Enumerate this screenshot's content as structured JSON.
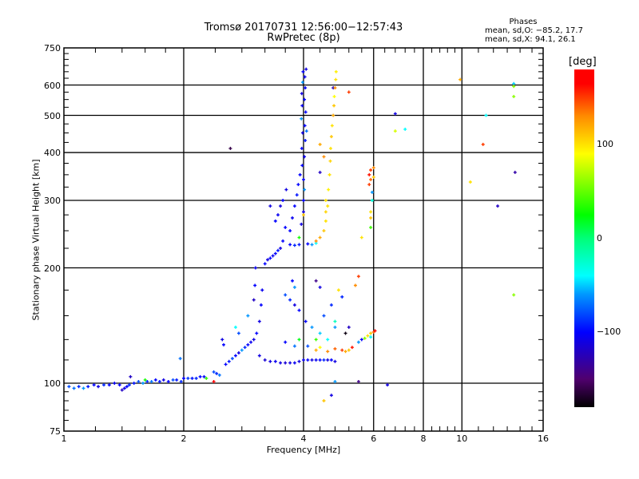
{
  "chart_data": {
    "type": "scatter",
    "title": "Tromsø 20170731 12:56:00−12:57:43",
    "subtitle": "RwPretec (8p)",
    "xlabel": "Frequency [MHz]",
    "ylabel": "Stationary phase Virtual Height [km]",
    "xscale": "log",
    "yscale": "log",
    "xlim": [
      1,
      16
    ],
    "ylim": [
      75,
      750
    ],
    "xticks": [
      1,
      2,
      4,
      6,
      8,
      10,
      16
    ],
    "xtick_labels": [
      "1",
      "2",
      "4",
      "6",
      "8",
      "10",
      "16"
    ],
    "yticks": [
      75,
      100,
      200,
      300,
      400,
      500,
      600,
      750
    ],
    "ytick_labels": [
      "75",
      "100",
      "200",
      "300",
      "400",
      "500",
      "600",
      "750"
    ],
    "grid": true,
    "stats": {
      "heading": "Phases",
      "o_line": "mean, sd,O: −85.2, 17.7",
      "x_line": "mean, sd,X:  94.1, 26.1"
    },
    "colorbar": {
      "label": "[deg]",
      "range": [
        -180,
        180
      ],
      "ticks": [
        100,
        0,
        -100
      ],
      "tick_labels": [
        "100",
        "0",
        "−100"
      ]
    },
    "point_format": [
      "frequency_MHz",
      "height_km",
      "phase_deg"
    ],
    "points": [
      [
        1.03,
        98,
        -80
      ],
      [
        1.06,
        97,
        -70
      ],
      [
        1.09,
        98,
        -90
      ],
      [
        1.12,
        97,
        -60
      ],
      [
        1.15,
        98,
        -95
      ],
      [
        1.19,
        99,
        -100
      ],
      [
        1.22,
        98,
        -110
      ],
      [
        1.26,
        99,
        -90
      ],
      [
        1.3,
        99,
        -100
      ],
      [
        1.34,
        100,
        -105
      ],
      [
        1.38,
        99,
        -100
      ],
      [
        1.4,
        96,
        -120
      ],
      [
        1.42,
        97,
        -110
      ],
      [
        1.44,
        98,
        -100
      ],
      [
        1.46,
        99,
        -90
      ],
      [
        1.47,
        104,
        -120
      ],
      [
        1.5,
        100,
        -95
      ],
      [
        1.54,
        101,
        -80
      ],
      [
        1.58,
        100,
        -60
      ],
      [
        1.6,
        102,
        30
      ],
      [
        1.62,
        101,
        -90
      ],
      [
        1.66,
        101,
        -70
      ],
      [
        1.7,
        102,
        -100
      ],
      [
        1.74,
        101,
        -95
      ],
      [
        1.78,
        102,
        -110
      ],
      [
        1.83,
        101,
        -100
      ],
      [
        1.88,
        102,
        -80
      ],
      [
        1.92,
        102,
        -95
      ],
      [
        1.96,
        116,
        -70
      ],
      [
        1.97,
        101,
        -90
      ],
      [
        2.0,
        103,
        -100
      ],
      [
        2.05,
        103,
        -85
      ],
      [
        2.1,
        103,
        -95
      ],
      [
        2.15,
        103,
        -90
      ],
      [
        2.2,
        104,
        -100
      ],
      [
        2.25,
        104,
        -100
      ],
      [
        2.28,
        103,
        40
      ],
      [
        2.38,
        101,
        170
      ],
      [
        2.38,
        107,
        -80
      ],
      [
        2.42,
        106,
        -90
      ],
      [
        2.46,
        105,
        -70
      ],
      [
        2.5,
        130,
        -110
      ],
      [
        2.52,
        126,
        -100
      ],
      [
        2.55,
        112,
        -100
      ],
      [
        2.6,
        114,
        -95
      ],
      [
        2.62,
        410,
        -160
      ],
      [
        2.65,
        116,
        -80
      ],
      [
        2.7,
        118,
        -100
      ],
      [
        2.7,
        140,
        -40
      ],
      [
        2.75,
        120,
        -110
      ],
      [
        2.75,
        135,
        -80
      ],
      [
        2.8,
        122,
        -60
      ],
      [
        2.85,
        124,
        -90
      ],
      [
        2.9,
        126,
        -100
      ],
      [
        2.9,
        150,
        -60
      ],
      [
        2.95,
        128,
        -105
      ],
      [
        3.0,
        130,
        -110
      ],
      [
        3.0,
        165,
        -120
      ],
      [
        3.02,
        180,
        -100
      ],
      [
        3.03,
        200,
        -105
      ],
      [
        3.05,
        135,
        -100
      ],
      [
        3.1,
        145,
        -110
      ],
      [
        3.13,
        160,
        -100
      ],
      [
        3.15,
        175,
        -105
      ],
      [
        3.2,
        205,
        -100
      ],
      [
        3.25,
        210,
        -110
      ],
      [
        3.3,
        212,
        -100
      ],
      [
        3.35,
        215,
        -105
      ],
      [
        3.4,
        218,
        -100
      ],
      [
        3.45,
        222,
        -95
      ],
      [
        3.5,
        225,
        -110
      ],
      [
        3.55,
        235,
        -100
      ],
      [
        3.3,
        290,
        -110
      ],
      [
        3.4,
        265,
        -100
      ],
      [
        3.45,
        275,
        -105
      ],
      [
        3.5,
        290,
        -110
      ],
      [
        3.55,
        300,
        -100
      ],
      [
        3.6,
        255,
        -100
      ],
      [
        3.62,
        320,
        -110
      ],
      [
        3.7,
        250,
        -100
      ],
      [
        3.75,
        270,
        -105
      ],
      [
        3.8,
        290,
        -100
      ],
      [
        3.85,
        310,
        -95
      ],
      [
        3.88,
        330,
        -100
      ],
      [
        3.9,
        240,
        30
      ],
      [
        3.92,
        350,
        -100
      ],
      [
        3.95,
        260,
        -110
      ],
      [
        3.97,
        370,
        -100
      ],
      [
        4.02,
        390,
        -105
      ],
      [
        3.96,
        410,
        -100
      ],
      [
        4.04,
        430,
        -95
      ],
      [
        3.98,
        450,
        -110
      ],
      [
        4.03,
        470,
        -100
      ],
      [
        3.95,
        490,
        -60
      ],
      [
        4.05,
        510,
        -100
      ],
      [
        3.97,
        530,
        -105
      ],
      [
        4.02,
        550,
        -100
      ],
      [
        3.96,
        570,
        -110
      ],
      [
        4.04,
        590,
        -100
      ],
      [
        3.98,
        610,
        -60
      ],
      [
        4.03,
        630,
        -105
      ],
      [
        3.99,
        650,
        -100
      ],
      [
        4.06,
        660,
        -110
      ],
      [
        4.0,
        280,
        -110
      ],
      [
        4.0,
        300,
        -100
      ],
      [
        4.02,
        320,
        -60
      ],
      [
        4.0,
        340,
        -100
      ],
      [
        4.07,
        455,
        -70
      ],
      [
        3.7,
        230,
        -100
      ],
      [
        3.8,
        229,
        -90
      ],
      [
        3.9,
        230,
        -95
      ],
      [
        4.1,
        231,
        -100
      ],
      [
        4.2,
        230,
        -60
      ],
      [
        4.3,
        232,
        -40
      ],
      [
        4.3,
        235,
        130
      ],
      [
        4.4,
        240,
        120
      ],
      [
        4.5,
        250,
        110
      ],
      [
        4.55,
        265,
        100
      ],
      [
        4.6,
        290,
        100
      ],
      [
        4.62,
        320,
        95
      ],
      [
        4.65,
        350,
        100
      ],
      [
        4.67,
        380,
        105
      ],
      [
        4.68,
        410,
        100
      ],
      [
        4.7,
        440,
        110
      ],
      [
        4.72,
        470,
        100
      ],
      [
        4.75,
        500,
        120
      ],
      [
        4.77,
        530,
        110
      ],
      [
        4.75,
        590,
        -120
      ],
      [
        4.78,
        560,
        90
      ],
      [
        4.8,
        590,
        130
      ],
      [
        4.82,
        620,
        100
      ],
      [
        4.83,
        650,
        95
      ],
      [
        5.2,
        575,
        150
      ],
      [
        4.55,
        280,
        105
      ],
      [
        4.55,
        300,
        100
      ],
      [
        4.5,
        390,
        130
      ],
      [
        4.4,
        420,
        120
      ],
      [
        4.4,
        355,
        -120
      ],
      [
        4.0,
        275,
        110
      ],
      [
        3.1,
        118,
        -110
      ],
      [
        3.2,
        115,
        -115
      ],
      [
        3.3,
        114,
        -110
      ],
      [
        3.4,
        114,
        -105
      ],
      [
        3.5,
        113,
        -110
      ],
      [
        3.6,
        113,
        -115
      ],
      [
        3.7,
        113,
        -110
      ],
      [
        3.8,
        113,
        -105
      ],
      [
        3.9,
        114,
        -110
      ],
      [
        4.0,
        115,
        -105
      ],
      [
        4.1,
        115,
        -100
      ],
      [
        4.2,
        115,
        -110
      ],
      [
        4.3,
        115,
        -105
      ],
      [
        4.4,
        115,
        -100
      ],
      [
        4.5,
        115,
        -90
      ],
      [
        4.6,
        115,
        -110
      ],
      [
        4.7,
        115,
        -100
      ],
      [
        4.8,
        114,
        -110
      ],
      [
        4.3,
        122,
        120
      ],
      [
        4.4,
        124,
        90
      ],
      [
        4.6,
        121,
        130
      ],
      [
        4.8,
        123,
        140
      ],
      [
        5.0,
        122,
        150
      ],
      [
        5.1,
        121,
        120
      ],
      [
        5.2,
        122,
        110
      ],
      [
        5.3,
        124,
        160
      ],
      [
        5.5,
        128,
        -60
      ],
      [
        5.6,
        130,
        -100
      ],
      [
        5.7,
        131,
        60
      ],
      [
        5.8,
        133,
        100
      ],
      [
        5.9,
        135,
        110
      ],
      [
        6.0,
        136,
        140
      ],
      [
        6.05,
        137,
        170
      ],
      [
        5.9,
        132,
        -40
      ],
      [
        3.9,
        155,
        -100
      ],
      [
        3.8,
        160,
        -110
      ],
      [
        3.7,
        165,
        -90
      ],
      [
        3.6,
        170,
        -80
      ],
      [
        4.05,
        145,
        -100
      ],
      [
        4.2,
        140,
        -60
      ],
      [
        4.4,
        135,
        -50
      ],
      [
        4.6,
        130,
        -40
      ],
      [
        4.8,
        140,
        -60
      ],
      [
        4.5,
        150,
        -80
      ],
      [
        4.7,
        160,
        -90
      ],
      [
        5.0,
        168,
        -90
      ],
      [
        3.75,
        185,
        -100
      ],
      [
        3.8,
        178,
        -60
      ],
      [
        4.9,
        175,
        100
      ],
      [
        5.5,
        190,
        150
      ],
      [
        5.4,
        180,
        130
      ],
      [
        4.3,
        185,
        -140
      ],
      [
        4.4,
        178,
        -110
      ],
      [
        3.9,
        130,
        20
      ],
      [
        4.3,
        130,
        40
      ],
      [
        4.8,
        145,
        -20
      ],
      [
        5.2,
        140,
        -120
      ],
      [
        4.1,
        125,
        -80
      ],
      [
        3.8,
        125,
        -70
      ],
      [
        3.6,
        128,
        -100
      ],
      [
        5.1,
        135,
        -175
      ],
      [
        4.5,
        90,
        110
      ],
      [
        4.7,
        93,
        -110
      ],
      [
        4.8,
        101,
        -60
      ],
      [
        5.5,
        101,
        -140
      ],
      [
        6.5,
        99,
        -110
      ],
      [
        6.8,
        505,
        -110
      ],
      [
        6.8,
        455,
        80
      ],
      [
        7.2,
        460,
        -40
      ],
      [
        9.9,
        620,
        120
      ],
      [
        10.5,
        335,
        100
      ],
      [
        11.3,
        420,
        150
      ],
      [
        11.5,
        500,
        -40
      ],
      [
        12.3,
        290,
        -120
      ],
      [
        13.5,
        605,
        -50
      ],
      [
        13.5,
        595,
        60
      ],
      [
        13.5,
        560,
        60
      ],
      [
        13.6,
        355,
        -130
      ],
      [
        13.5,
        170,
        60
      ],
      [
        5.85,
        330,
        150
      ],
      [
        5.9,
        340,
        140
      ],
      [
        5.85,
        350,
        160
      ],
      [
        5.9,
        360,
        150
      ],
      [
        5.95,
        315,
        -60
      ],
      [
        5.95,
        300,
        -30
      ],
      [
        5.9,
        280,
        100
      ],
      [
        5.9,
        270,
        110
      ],
      [
        5.9,
        255,
        40
      ],
      [
        6.0,
        365,
        130
      ],
      [
        6.0,
        345,
        110
      ],
      [
        5.6,
        240,
        100
      ]
    ]
  }
}
